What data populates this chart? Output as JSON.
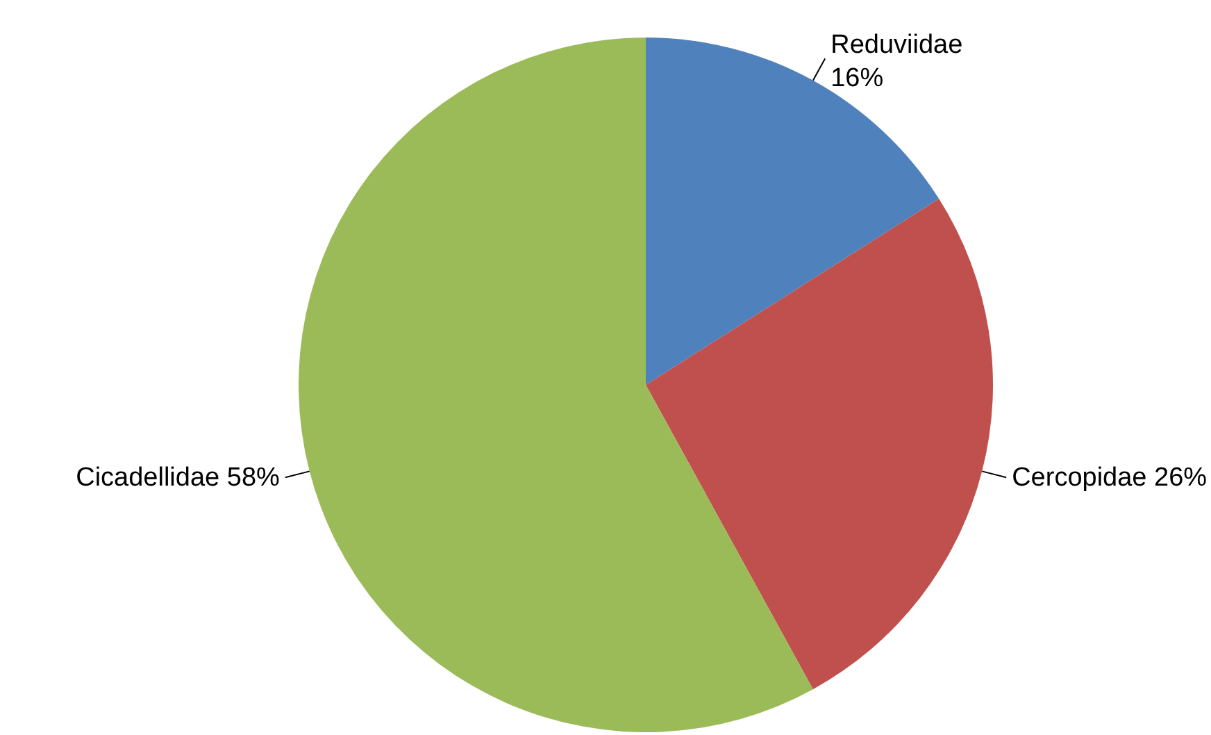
{
  "chart_data": {
    "type": "pie",
    "categories": [
      "Reduviidae",
      "Cercopidae",
      "Cicadellidae"
    ],
    "values": [
      16,
      26,
      58
    ],
    "colors": [
      "#4f81bd",
      "#c0504d",
      "#9bbb59"
    ],
    "value_labels": [
      "16%",
      "26%",
      "58%"
    ]
  }
}
